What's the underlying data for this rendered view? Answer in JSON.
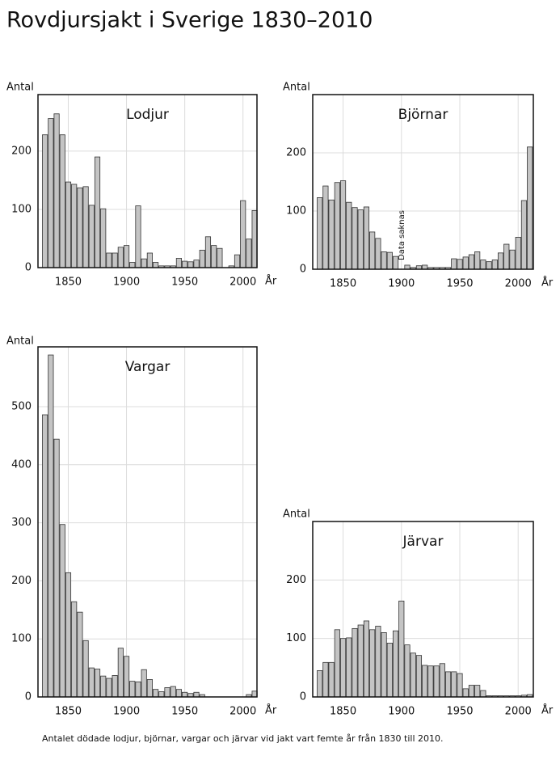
{
  "title": "Rovdjursjakt i Sverige 1830–2010",
  "caption": "Antalet dödade lodjur, björnar, vargar och järvar vid jakt vart femte år från 1830 till 2010.",
  "chart_data": [
    {
      "type": "bar",
      "title": "Lodjur",
      "ylabel": "Antal",
      "xlabel": "År",
      "color": "#c4c4c4",
      "grid": true,
      "x": [
        1830,
        1835,
        1840,
        1845,
        1850,
        1855,
        1860,
        1865,
        1870,
        1875,
        1880,
        1885,
        1890,
        1895,
        1900,
        1905,
        1910,
        1915,
        1920,
        1925,
        1930,
        1935,
        1940,
        1945,
        1950,
        1955,
        1960,
        1965,
        1970,
        1975,
        1980,
        1985,
        1990,
        1995,
        2000,
        2005,
        2010
      ],
      "values": [
        228,
        256,
        264,
        228,
        147,
        143,
        137,
        139,
        107,
        190,
        101,
        25,
        25,
        35,
        38,
        9,
        106,
        15,
        25,
        9,
        3,
        3,
        3,
        16,
        11,
        10,
        13,
        30,
        53,
        38,
        33,
        0,
        3,
        22,
        115,
        49,
        98
      ],
      "xlim": [
        1824,
        2012
      ],
      "ylim": [
        0,
        297
      ],
      "xticks": [
        1850,
        1900,
        1950,
        2000
      ],
      "yticks": [
        0,
        100,
        200
      ]
    },
    {
      "type": "bar",
      "title": "Björnar",
      "ylabel": "Antal",
      "xlabel": "År",
      "color": "#c4c4c4",
      "grid": true,
      "annotation": "Data saknas",
      "x": [
        1830,
        1835,
        1840,
        1845,
        1850,
        1855,
        1860,
        1865,
        1870,
        1875,
        1880,
        1885,
        1890,
        1895,
        1900,
        1905,
        1910,
        1915,
        1920,
        1925,
        1930,
        1935,
        1940,
        1945,
        1950,
        1955,
        1960,
        1965,
        1970,
        1975,
        1980,
        1985,
        1990,
        1995,
        2000,
        2005,
        2010
      ],
      "values": [
        123,
        143,
        119,
        149,
        152,
        115,
        106,
        102,
        107,
        64,
        53,
        30,
        29,
        22,
        null,
        7,
        3,
        6,
        7,
        3,
        3,
        3,
        3,
        18,
        17,
        21,
        25,
        30,
        16,
        13,
        16,
        28,
        43,
        33,
        55,
        118,
        210
      ],
      "xlim": [
        1824,
        2013
      ],
      "ylim": [
        0,
        300
      ],
      "xticks": [
        1850,
        1900,
        1950,
        2000
      ],
      "yticks": [
        0,
        100,
        200
      ]
    },
    {
      "type": "bar",
      "title": "Vargar",
      "ylabel": "Antal",
      "xlabel": "År",
      "color": "#c4c4c4",
      "grid": true,
      "x": [
        1830,
        1835,
        1840,
        1845,
        1850,
        1855,
        1860,
        1865,
        1870,
        1875,
        1880,
        1885,
        1890,
        1895,
        1900,
        1905,
        1910,
        1915,
        1920,
        1925,
        1930,
        1935,
        1940,
        1945,
        1950,
        1955,
        1960,
        1965,
        1970,
        1975,
        1980,
        1985,
        1990,
        1995,
        2000,
        2005,
        2010
      ],
      "values": [
        486,
        589,
        444,
        297,
        214,
        164,
        146,
        97,
        50,
        48,
        36,
        32,
        37,
        84,
        70,
        27,
        26,
        47,
        30,
        13,
        9,
        16,
        18,
        13,
        8,
        6,
        8,
        4,
        0,
        0,
        0,
        0,
        0,
        0,
        0,
        4,
        10
      ],
      "xlim": [
        1824,
        2012
      ],
      "ylim": [
        0,
        603
      ],
      "xticks": [
        1850,
        1900,
        1950,
        2000
      ],
      "yticks": [
        0,
        100,
        200,
        300,
        400,
        500
      ]
    },
    {
      "type": "bar",
      "title": "Järvar",
      "ylabel": "Antal",
      "xlabel": "År",
      "color": "#c4c4c4",
      "grid": true,
      "x": [
        1830,
        1835,
        1840,
        1845,
        1850,
        1855,
        1860,
        1865,
        1870,
        1875,
        1880,
        1885,
        1890,
        1895,
        1900,
        1905,
        1910,
        1915,
        1920,
        1925,
        1930,
        1935,
        1940,
        1945,
        1950,
        1955,
        1960,
        1965,
        1970,
        1975,
        1980,
        1985,
        1990,
        1995,
        2000,
        2005,
        2010
      ],
      "values": [
        45,
        59,
        59,
        115,
        100,
        101,
        117,
        123,
        130,
        115,
        121,
        110,
        92,
        113,
        164,
        89,
        75,
        71,
        54,
        53,
        53,
        57,
        43,
        43,
        40,
        14,
        20,
        20,
        11,
        2,
        2,
        2,
        2,
        2,
        2,
        3,
        4
      ],
      "xlim": [
        1824,
        2013
      ],
      "ylim": [
        0,
        300
      ],
      "xticks": [
        1850,
        1900,
        1950,
        2000
      ],
      "yticks": [
        0,
        100,
        200
      ]
    }
  ]
}
